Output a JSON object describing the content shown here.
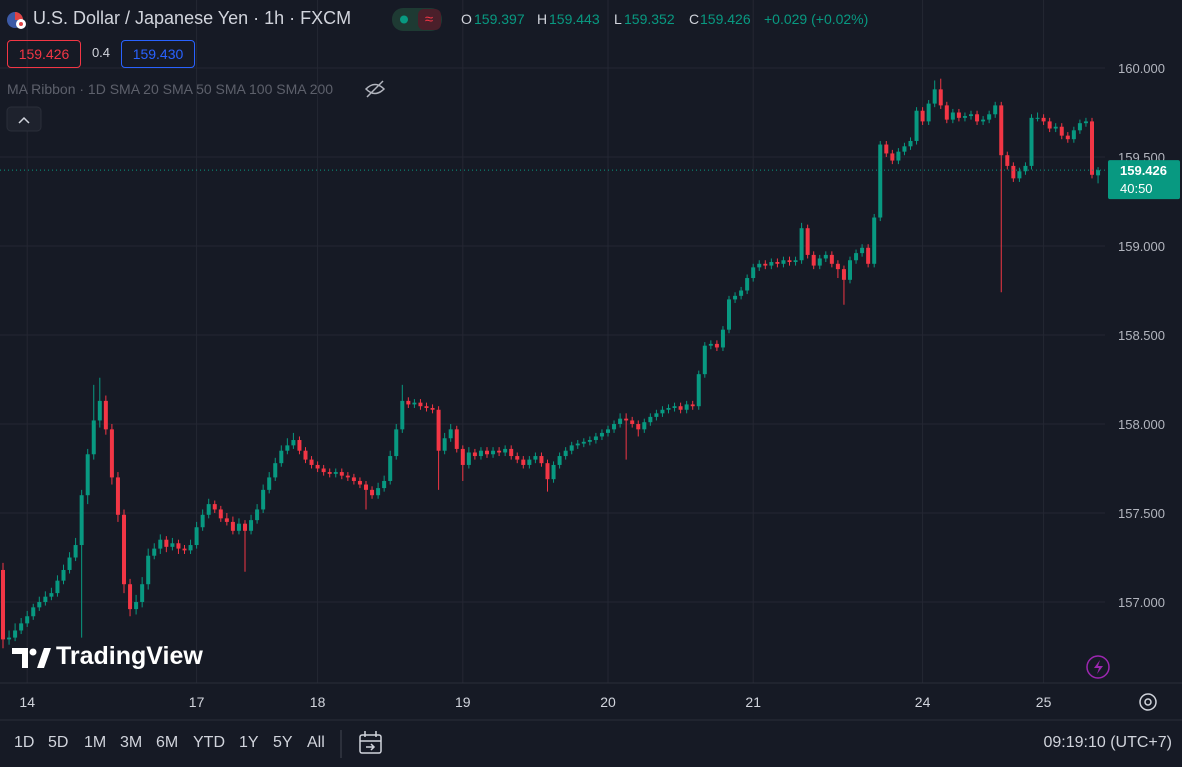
{
  "header": {
    "symbol": "U.S. Dollar / Japanese Yen · 1h · FXCM",
    "ohlc_labels": [
      "O",
      "H",
      "L",
      "C"
    ],
    "change": "+0.029 (+0.02%)"
  },
  "trade": {
    "sell": "159.426",
    "spread": "0.4",
    "buy": "159.430"
  },
  "indicator": {
    "name": "MA Ribbon · 1D SMA 20 SMA 50 SMA 100 SMA 200"
  },
  "price_label": {
    "countdown": "40:50"
  },
  "logo": "TradingView",
  "ranges": [
    "1D",
    "5D",
    "1M",
    "3M",
    "6M",
    "YTD",
    "1Y",
    "5Y",
    "All"
  ],
  "clock": "09:19:10 (UTC+7)",
  "chart_data": {
    "type": "candlestick",
    "up_color": "#089981",
    "down_color": "#f23645",
    "grid": true,
    "ylim": [
      156.545,
      160.382
    ],
    "yticks": [
      {
        "value": 157,
        "label": "157.000"
      },
      {
        "value": 157.5,
        "label": "157.500"
      },
      {
        "value": 158,
        "label": "158.000"
      },
      {
        "value": 158.5,
        "label": "158.500"
      },
      {
        "value": 159,
        "label": "159.000"
      },
      {
        "value": 159.5,
        "label": "159.500"
      },
      {
        "value": 160,
        "label": "160.000"
      }
    ],
    "xticks": [
      {
        "value": 4,
        "label": "14"
      },
      {
        "value": 32,
        "label": "17"
      },
      {
        "value": 52,
        "label": "18"
      },
      {
        "value": 76,
        "label": "19"
      },
      {
        "value": 100,
        "label": "20"
      },
      {
        "value": 124,
        "label": "21"
      },
      {
        "value": 152,
        "label": "24"
      },
      {
        "value": 172,
        "label": "25"
      }
    ],
    "ohlc": [
      [
        157.18,
        157.22,
        156.74,
        156.79
      ],
      [
        156.79,
        156.84,
        156.76,
        156.8
      ],
      [
        156.8,
        156.88,
        156.78,
        156.84
      ],
      [
        156.84,
        156.91,
        156.82,
        156.88
      ],
      [
        156.88,
        156.95,
        156.86,
        156.92
      ],
      [
        156.92,
        156.99,
        156.9,
        156.97
      ],
      [
        156.97,
        157.03,
        156.95,
        157.0
      ],
      [
        157.0,
        157.06,
        156.98,
        157.03
      ],
      [
        157.03,
        157.08,
        157.01,
        157.05
      ],
      [
        157.05,
        157.15,
        157.03,
        157.12
      ],
      [
        157.12,
        157.21,
        157.1,
        157.18
      ],
      [
        157.18,
        157.28,
        157.16,
        157.25
      ],
      [
        157.25,
        157.36,
        157.23,
        157.32
      ],
      [
        157.32,
        157.63,
        156.8,
        157.6
      ],
      [
        157.6,
        157.86,
        157.55,
        157.83
      ],
      [
        157.83,
        158.22,
        157.8,
        158.02
      ],
      [
        158.02,
        158.26,
        157.98,
        158.13
      ],
      [
        158.13,
        158.16,
        157.94,
        157.97
      ],
      [
        157.97,
        158.0,
        157.66,
        157.7
      ],
      [
        157.7,
        157.73,
        157.45,
        157.49
      ],
      [
        157.49,
        157.52,
        157.05,
        157.1
      ],
      [
        157.1,
        157.13,
        156.92,
        156.96
      ],
      [
        156.96,
        157.04,
        156.93,
        157.0
      ],
      [
        157.0,
        157.14,
        156.97,
        157.1
      ],
      [
        157.1,
        157.3,
        157.07,
        157.26
      ],
      [
        157.26,
        157.33,
        157.24,
        157.3
      ],
      [
        157.3,
        157.38,
        157.27,
        157.35
      ],
      [
        157.35,
        157.37,
        157.28,
        157.31
      ],
      [
        157.31,
        157.36,
        157.29,
        157.33
      ],
      [
        157.33,
        157.35,
        157.27,
        157.3
      ],
      [
        157.3,
        157.32,
        157.27,
        157.29
      ],
      [
        157.29,
        157.35,
        157.27,
        157.32
      ],
      [
        157.32,
        157.45,
        157.3,
        157.42
      ],
      [
        157.42,
        157.52,
        157.4,
        157.49
      ],
      [
        157.49,
        157.58,
        157.47,
        157.55
      ],
      [
        157.55,
        157.57,
        157.5,
        157.52
      ],
      [
        157.52,
        157.54,
        157.45,
        157.47
      ],
      [
        157.47,
        157.5,
        157.43,
        157.45
      ],
      [
        157.45,
        157.48,
        157.38,
        157.4
      ],
      [
        157.4,
        157.47,
        157.38,
        157.44
      ],
      [
        157.44,
        157.46,
        157.17,
        157.4
      ],
      [
        157.4,
        157.49,
        157.38,
        157.46
      ],
      [
        157.46,
        157.55,
        157.44,
        157.52
      ],
      [
        157.52,
        157.66,
        157.5,
        157.63
      ],
      [
        157.63,
        157.73,
        157.61,
        157.7
      ],
      [
        157.7,
        157.81,
        157.68,
        157.78
      ],
      [
        157.78,
        157.88,
        157.76,
        157.85
      ],
      [
        157.85,
        157.92,
        157.83,
        157.88
      ],
      [
        157.88,
        157.95,
        157.86,
        157.91
      ],
      [
        157.91,
        157.93,
        157.83,
        157.85
      ],
      [
        157.85,
        157.87,
        157.78,
        157.8
      ],
      [
        157.8,
        157.82,
        157.75,
        157.77
      ],
      [
        157.77,
        157.79,
        157.73,
        157.75
      ],
      [
        157.75,
        157.77,
        157.71,
        157.73
      ],
      [
        157.73,
        157.75,
        157.7,
        157.72
      ],
      [
        157.72,
        157.75,
        157.7,
        157.73
      ],
      [
        157.73,
        157.75,
        157.69,
        157.71
      ],
      [
        157.71,
        157.73,
        157.68,
        157.7
      ],
      [
        157.7,
        157.72,
        157.66,
        157.68
      ],
      [
        157.68,
        157.7,
        157.64,
        157.66
      ],
      [
        157.66,
        157.68,
        157.52,
        157.63
      ],
      [
        157.63,
        157.65,
        157.58,
        157.6
      ],
      [
        157.6,
        157.67,
        157.58,
        157.64
      ],
      [
        157.64,
        157.71,
        157.62,
        157.68
      ],
      [
        157.68,
        157.85,
        157.66,
        157.82
      ],
      [
        157.82,
        158.0,
        157.8,
        157.97
      ],
      [
        157.97,
        158.22,
        157.95,
        158.13
      ],
      [
        158.13,
        158.15,
        158.09,
        158.11
      ],
      [
        158.11,
        158.14,
        158.09,
        158.12
      ],
      [
        158.12,
        158.14,
        158.08,
        158.1
      ],
      [
        158.1,
        158.12,
        158.07,
        158.09
      ],
      [
        158.09,
        158.11,
        158.06,
        158.08
      ],
      [
        158.08,
        158.1,
        157.63,
        157.85
      ],
      [
        157.85,
        157.95,
        157.83,
        157.92
      ],
      [
        157.92,
        158.0,
        157.9,
        157.97
      ],
      [
        157.97,
        157.99,
        157.84,
        157.86
      ],
      [
        157.86,
        157.88,
        157.68,
        157.77
      ],
      [
        157.77,
        157.87,
        157.75,
        157.84
      ],
      [
        157.84,
        157.86,
        157.8,
        157.82
      ],
      [
        157.82,
        157.87,
        157.8,
        157.85
      ],
      [
        157.85,
        157.87,
        157.81,
        157.83
      ],
      [
        157.83,
        157.87,
        157.81,
        157.85
      ],
      [
        157.85,
        157.87,
        157.82,
        157.84
      ],
      [
        157.84,
        157.88,
        157.82,
        157.86
      ],
      [
        157.86,
        157.88,
        157.8,
        157.82
      ],
      [
        157.82,
        157.84,
        157.78,
        157.8
      ],
      [
        157.8,
        157.82,
        157.75,
        157.77
      ],
      [
        157.77,
        157.82,
        157.75,
        157.8
      ],
      [
        157.8,
        157.84,
        157.78,
        157.82
      ],
      [
        157.82,
        157.84,
        157.76,
        157.78
      ],
      [
        157.78,
        157.8,
        157.62,
        157.69
      ],
      [
        157.69,
        157.79,
        157.67,
        157.77
      ],
      [
        157.77,
        157.84,
        157.75,
        157.82
      ],
      [
        157.82,
        157.87,
        157.8,
        157.85
      ],
      [
        157.85,
        157.9,
        157.83,
        157.88
      ],
      [
        157.88,
        157.91,
        157.86,
        157.89
      ],
      [
        157.89,
        157.92,
        157.87,
        157.9
      ],
      [
        157.9,
        157.93,
        157.88,
        157.91
      ],
      [
        157.91,
        157.95,
        157.89,
        157.93
      ],
      [
        157.93,
        157.97,
        157.91,
        157.95
      ],
      [
        157.95,
        157.99,
        157.93,
        157.97
      ],
      [
        157.97,
        158.02,
        157.95,
        158.0
      ],
      [
        158.0,
        158.06,
        157.98,
        158.03
      ],
      [
        158.03,
        158.06,
        157.8,
        158.02
      ],
      [
        158.02,
        158.04,
        157.98,
        158.0
      ],
      [
        158.0,
        158.02,
        157.93,
        157.97
      ],
      [
        157.97,
        158.03,
        157.95,
        158.01
      ],
      [
        158.01,
        158.06,
        157.99,
        158.04
      ],
      [
        158.04,
        158.08,
        158.02,
        158.06
      ],
      [
        158.06,
        158.1,
        158.04,
        158.08
      ],
      [
        158.08,
        158.11,
        158.06,
        158.09
      ],
      [
        158.09,
        158.12,
        158.07,
        158.1
      ],
      [
        158.1,
        158.12,
        158.06,
        158.08
      ],
      [
        158.08,
        158.13,
        158.06,
        158.11
      ],
      [
        158.11,
        158.13,
        158.08,
        158.1
      ],
      [
        158.1,
        158.3,
        158.08,
        158.28
      ],
      [
        158.28,
        158.46,
        158.26,
        158.44
      ],
      [
        158.44,
        158.47,
        158.42,
        158.45
      ],
      [
        158.45,
        158.47,
        158.41,
        158.43
      ],
      [
        158.43,
        158.55,
        158.41,
        158.53
      ],
      [
        158.53,
        158.72,
        158.51,
        158.7
      ],
      [
        158.7,
        158.74,
        158.68,
        158.72
      ],
      [
        158.72,
        158.77,
        158.7,
        158.75
      ],
      [
        158.75,
        158.84,
        158.73,
        158.82
      ],
      [
        158.82,
        158.9,
        158.8,
        158.88
      ],
      [
        158.88,
        158.92,
        158.86,
        158.9
      ],
      [
        158.9,
        158.92,
        158.87,
        158.89
      ],
      [
        158.89,
        158.93,
        158.87,
        158.91
      ],
      [
        158.91,
        158.93,
        158.88,
        158.9
      ],
      [
        158.9,
        158.94,
        158.88,
        158.92
      ],
      [
        158.92,
        158.94,
        158.89,
        158.91
      ],
      [
        158.91,
        158.94,
        158.89,
        158.92
      ],
      [
        158.92,
        159.13,
        158.9,
        159.1
      ],
      [
        159.1,
        159.12,
        158.93,
        158.95
      ],
      [
        158.95,
        158.97,
        158.87,
        158.89
      ],
      [
        158.89,
        158.95,
        158.87,
        158.93
      ],
      [
        158.93,
        158.97,
        158.91,
        158.95
      ],
      [
        158.95,
        158.97,
        158.88,
        158.9
      ],
      [
        158.9,
        158.92,
        158.82,
        158.87
      ],
      [
        158.87,
        158.89,
        158.67,
        158.81
      ],
      [
        158.81,
        158.94,
        158.79,
        158.92
      ],
      [
        158.92,
        158.98,
        158.9,
        158.96
      ],
      [
        158.96,
        159.01,
        158.94,
        158.99
      ],
      [
        158.99,
        159.01,
        158.88,
        158.9
      ],
      [
        158.9,
        159.18,
        158.88,
        159.16
      ],
      [
        159.16,
        159.59,
        159.14,
        159.57
      ],
      [
        159.57,
        159.59,
        159.5,
        159.52
      ],
      [
        159.52,
        159.54,
        159.46,
        159.48
      ],
      [
        159.48,
        159.55,
        159.46,
        159.53
      ],
      [
        159.53,
        159.58,
        159.51,
        159.56
      ],
      [
        159.56,
        159.61,
        159.54,
        159.59
      ],
      [
        159.59,
        159.78,
        159.57,
        159.76
      ],
      [
        159.76,
        159.78,
        159.68,
        159.7
      ],
      [
        159.7,
        159.82,
        159.68,
        159.8
      ],
      [
        159.8,
        159.93,
        159.78,
        159.88
      ],
      [
        159.88,
        159.94,
        159.77,
        159.79
      ],
      [
        159.79,
        159.81,
        159.69,
        159.71
      ],
      [
        159.71,
        159.77,
        159.69,
        159.75
      ],
      [
        159.75,
        159.77,
        159.7,
        159.72
      ],
      [
        159.72,
        159.75,
        159.7,
        159.73
      ],
      [
        159.73,
        159.76,
        159.71,
        159.74
      ],
      [
        159.74,
        159.76,
        159.68,
        159.7
      ],
      [
        159.7,
        159.73,
        159.68,
        159.71
      ],
      [
        159.71,
        159.76,
        159.69,
        159.74
      ],
      [
        159.74,
        159.81,
        159.72,
        159.79
      ],
      [
        159.79,
        159.81,
        158.74,
        159.51
      ],
      [
        159.51,
        159.53,
        159.43,
        159.45
      ],
      [
        159.45,
        159.47,
        159.36,
        159.38
      ],
      [
        159.38,
        159.44,
        159.36,
        159.42
      ],
      [
        159.42,
        159.47,
        159.4,
        159.45
      ],
      [
        159.45,
        159.74,
        159.43,
        159.72
      ],
      [
        159.72,
        159.75,
        159.7,
        159.72
      ],
      [
        159.72,
        159.74,
        159.68,
        159.7
      ],
      [
        159.7,
        159.72,
        159.64,
        159.66
      ],
      [
        159.66,
        159.69,
        159.64,
        159.67
      ],
      [
        159.67,
        159.69,
        159.6,
        159.62
      ],
      [
        159.62,
        159.64,
        159.58,
        159.6
      ],
      [
        159.6,
        159.67,
        159.58,
        159.65
      ],
      [
        159.65,
        159.71,
        159.63,
        159.69
      ],
      [
        159.69,
        159.72,
        159.67,
        159.7
      ],
      [
        159.7,
        159.72,
        159.38,
        159.4
      ],
      [
        159.397,
        159.443,
        159.352,
        159.426
      ]
    ]
  }
}
